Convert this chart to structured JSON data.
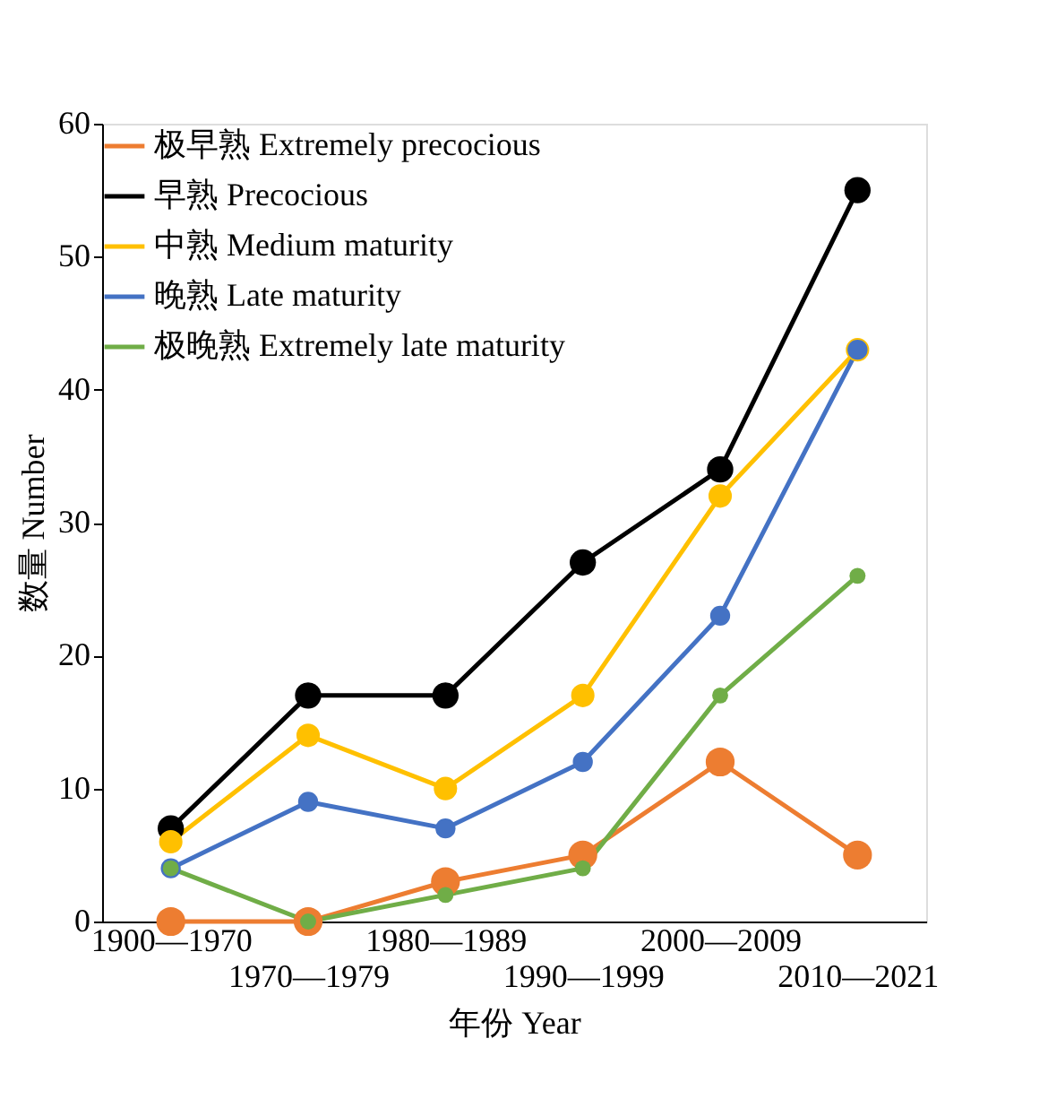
{
  "chart_data": {
    "type": "line",
    "xlabel": "年份 Year",
    "ylabel": "数量 Number",
    "categories": [
      "1900—1970",
      "1970—1979",
      "1980—1989",
      "1990—1999",
      "2000—2009",
      "2010—2021"
    ],
    "series": [
      {
        "name": "极早熟 Extremely precocious",
        "color": "#ed7d31",
        "values": [
          0,
          0,
          3,
          5,
          12,
          5
        ]
      },
      {
        "name": "早熟 Precocious",
        "color": "#000000",
        "values": [
          7,
          17,
          17,
          27,
          34,
          55
        ]
      },
      {
        "name": "中熟 Medium maturity",
        "color": "#ffc000",
        "values": [
          6,
          14,
          10,
          17,
          32,
          43
        ]
      },
      {
        "name": "晚熟 Late maturity",
        "color": "#4472c4",
        "values": [
          4,
          9,
          7,
          12,
          23,
          43
        ]
      },
      {
        "name": "极晚熟 Extremely late maturity",
        "color": "#70ad47",
        "values": [
          4,
          0,
          2,
          4,
          17,
          26
        ]
      }
    ],
    "ylim": [
      0,
      60
    ],
    "yticks": [
      0,
      10,
      20,
      30,
      40,
      50,
      60
    ],
    "grid": false,
    "legend": "top left",
    "marker": "circle",
    "line_style": "solid"
  }
}
